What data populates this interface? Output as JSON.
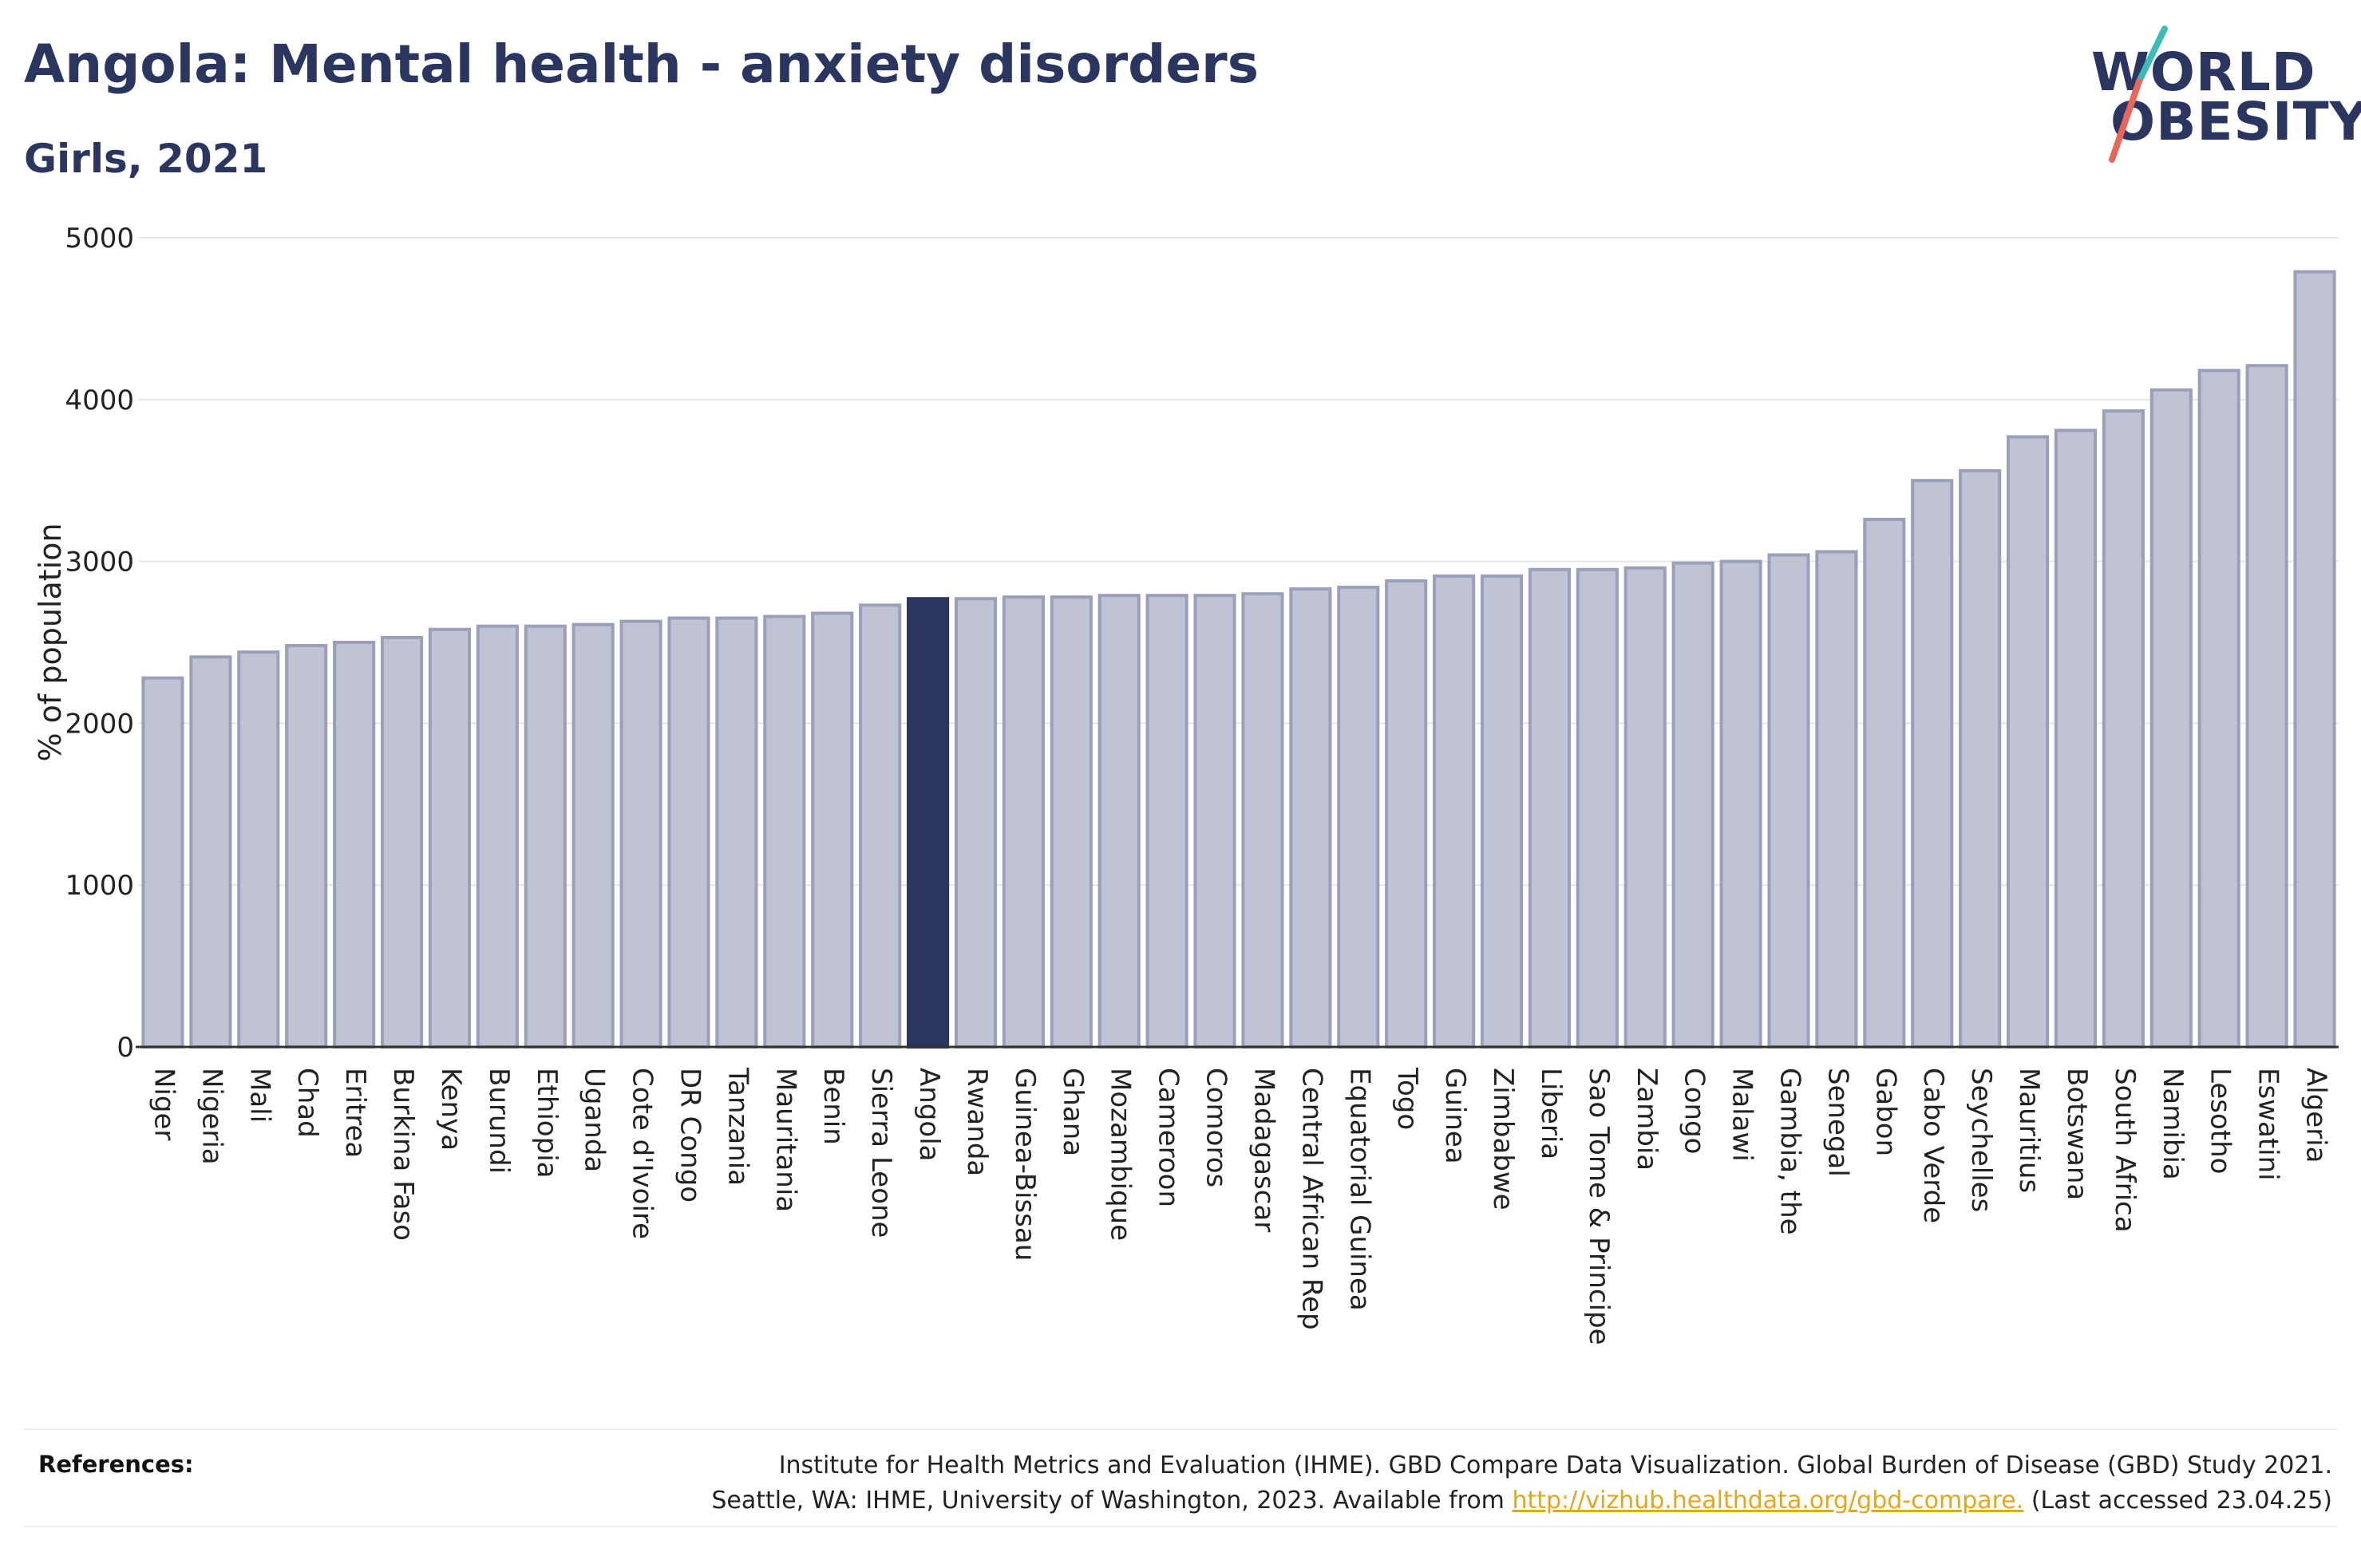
{
  "title": "Angola: Mental health - anxiety disorders",
  "subtitle": "Girls, 2021",
  "logo": {
    "line1": "WORLD",
    "line2": "OBESITY",
    "accent_teal": "#3bbcb8",
    "accent_coral": "#e8675a"
  },
  "colors": {
    "bar": "#bfc3d3",
    "bar_border": "#9aa0bb",
    "highlight": "#2a3560",
    "grid": "#e6e6e6",
    "axis": "#333333"
  },
  "references": {
    "label": "References:",
    "line1": "Institute for Health Metrics and Evaluation (IHME). GBD Compare Data Visualization. Global Burden of Disease (GBD) Study 2021.",
    "line2_pre": "Seattle, WA: IHME, University of Washington, 2023. Available from ",
    "link": "http://vizhub.healthdata.org/gbd-compare.",
    "line2_post": " (Last accessed 23.04.25)"
  },
  "chart_data": {
    "type": "bar",
    "ylabel": "% of population",
    "xlabel": "",
    "ylim": [
      0,
      5000
    ],
    "yticks": [
      0,
      1000,
      2000,
      3000,
      4000,
      5000
    ],
    "grid": true,
    "highlight": "Angola",
    "categories": [
      "Niger",
      "Nigeria",
      "Mali",
      "Chad",
      "Eritrea",
      "Burkina Faso",
      "Kenya",
      "Burundi",
      "Ethiopia",
      "Uganda",
      "Cote d'Ivoire",
      "DR Congo",
      "Tanzania",
      "Mauritania",
      "Benin",
      "Sierra Leone",
      "Angola",
      "Rwanda",
      "Guinea-Bissau",
      "Ghana",
      "Mozambique",
      "Cameroon",
      "Comoros",
      "Madagascar",
      "Central African Rep",
      "Equatorial Guinea",
      "Togo",
      "Guinea",
      "Zimbabwe",
      "Liberia",
      "Sao Tome & Principe",
      "Zambia",
      "Congo",
      "Malawi",
      "Gambia, the",
      "Senegal",
      "Gabon",
      "Cabo Verde",
      "Seychelles",
      "Mauritius",
      "Botswana",
      "South Africa",
      "Namibia",
      "Lesotho",
      "Eswatini",
      "Algeria"
    ],
    "values": [
      2280,
      2410,
      2440,
      2480,
      2500,
      2530,
      2580,
      2600,
      2600,
      2610,
      2630,
      2650,
      2650,
      2660,
      2680,
      2730,
      2770,
      2770,
      2780,
      2780,
      2790,
      2790,
      2790,
      2800,
      2830,
      2840,
      2880,
      2910,
      2910,
      2950,
      2950,
      2960,
      2990,
      3000,
      3040,
      3060,
      3260,
      3500,
      3560,
      3770,
      3810,
      3930,
      4060,
      4180,
      4210,
      4790
    ]
  }
}
